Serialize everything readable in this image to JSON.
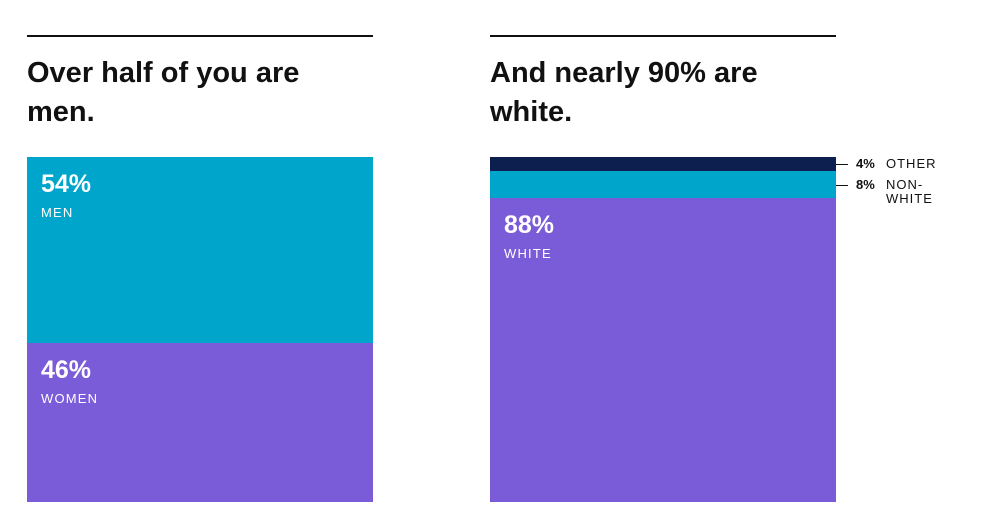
{
  "chart_data": [
    {
      "type": "stacked-bar",
      "title": "Over half of you are men.",
      "ylim": [
        0,
        100
      ],
      "series": [
        {
          "name": "MEN",
          "color": "#00a5cb",
          "values": [
            54
          ],
          "value_labels": [
            "54%"
          ]
        },
        {
          "name": "WOMEN",
          "color": "#7a5bd8",
          "values": [
            46
          ],
          "value_labels": [
            "46%"
          ]
        }
      ]
    },
    {
      "type": "stacked-bar",
      "title": "And nearly 90% are white.",
      "ylim": [
        0,
        100
      ],
      "series": [
        {
          "name": "OTHER",
          "color": "#0c1f4f",
          "values": [
            4
          ],
          "value_labels": [
            "4%"
          ]
        },
        {
          "name": "NON-WHITE",
          "color": "#00a5cb",
          "values": [
            8
          ],
          "value_labels": [
            "8%"
          ]
        },
        {
          "name": "WHITE",
          "color": "#7a5bd8",
          "values": [
            88
          ],
          "value_labels": [
            "88%"
          ]
        }
      ]
    }
  ]
}
